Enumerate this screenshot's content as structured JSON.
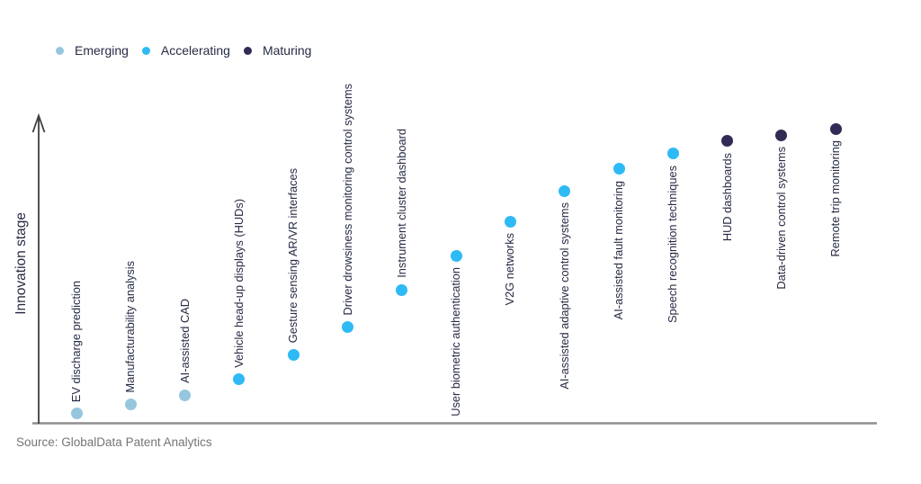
{
  "legend": {
    "items": [
      {
        "label": "Emerging",
        "color": "#96c6de"
      },
      {
        "label": "Accelerating",
        "color": "#2ebaf5"
      },
      {
        "label": "Maturing",
        "color": "#332a55"
      }
    ]
  },
  "axis": {
    "y_label": "Innovation stage"
  },
  "source": {
    "text": "Source: GlobalData Patent Analytics"
  },
  "chart_data": {
    "type": "scatter",
    "title": "",
    "xlabel": "",
    "ylabel": "Innovation stage",
    "grid": false,
    "legend_position": "top-left",
    "y_axis_style": "qualitative upward arrow, no tick labels",
    "stages": [
      "Emerging",
      "Accelerating",
      "Maturing"
    ],
    "stage_colors": {
      "Emerging": "#96c6de",
      "Accelerating": "#2ebaf5",
      "Maturing": "#332a55"
    },
    "points": [
      {
        "label": "EV discharge prediction",
        "stage": "Emerging",
        "stage_score": 3,
        "label_position": "above"
      },
      {
        "label": "Manufacturability analysis",
        "stage": "Emerging",
        "stage_score": 6,
        "label_position": "above"
      },
      {
        "label": "AI-assisted CAD",
        "stage": "Emerging",
        "stage_score": 9,
        "label_position": "above"
      },
      {
        "label": "Vehicle head-up displays (HUDs)",
        "stage": "Accelerating",
        "stage_score": 14,
        "label_position": "above"
      },
      {
        "label": "Gesture sensing AR/VR interfaces",
        "stage": "Accelerating",
        "stage_score": 22,
        "label_position": "above"
      },
      {
        "label": "Driver drowsiness monitoring control systems",
        "stage": "Accelerating",
        "stage_score": 31,
        "label_position": "above"
      },
      {
        "label": "Instrument cluster dashboard",
        "stage": "Accelerating",
        "stage_score": 43,
        "label_position": "above"
      },
      {
        "label": "User biometric authentication",
        "stage": "Accelerating",
        "stage_score": 54,
        "label_position": "below"
      },
      {
        "label": "V2G networks",
        "stage": "Accelerating",
        "stage_score": 65,
        "label_position": "below"
      },
      {
        "label": "AI-assisted adaptive control systems",
        "stage": "Accelerating",
        "stage_score": 75,
        "label_position": "below"
      },
      {
        "label": "AI-assisted fault monitoring",
        "stage": "Accelerating",
        "stage_score": 82,
        "label_position": "below"
      },
      {
        "label": "Speech recognition techniques",
        "stage": "Accelerating",
        "stage_score": 87,
        "label_position": "below"
      },
      {
        "label": "HUD dashboards",
        "stage": "Maturing",
        "stage_score": 91,
        "label_position": "below"
      },
      {
        "label": "Data-driven control systems",
        "stage": "Maturing",
        "stage_score": 93,
        "label_position": "below"
      },
      {
        "label": "Remote trip monitoring",
        "stage": "Maturing",
        "stage_score": 95,
        "label_position": "below"
      }
    ]
  }
}
